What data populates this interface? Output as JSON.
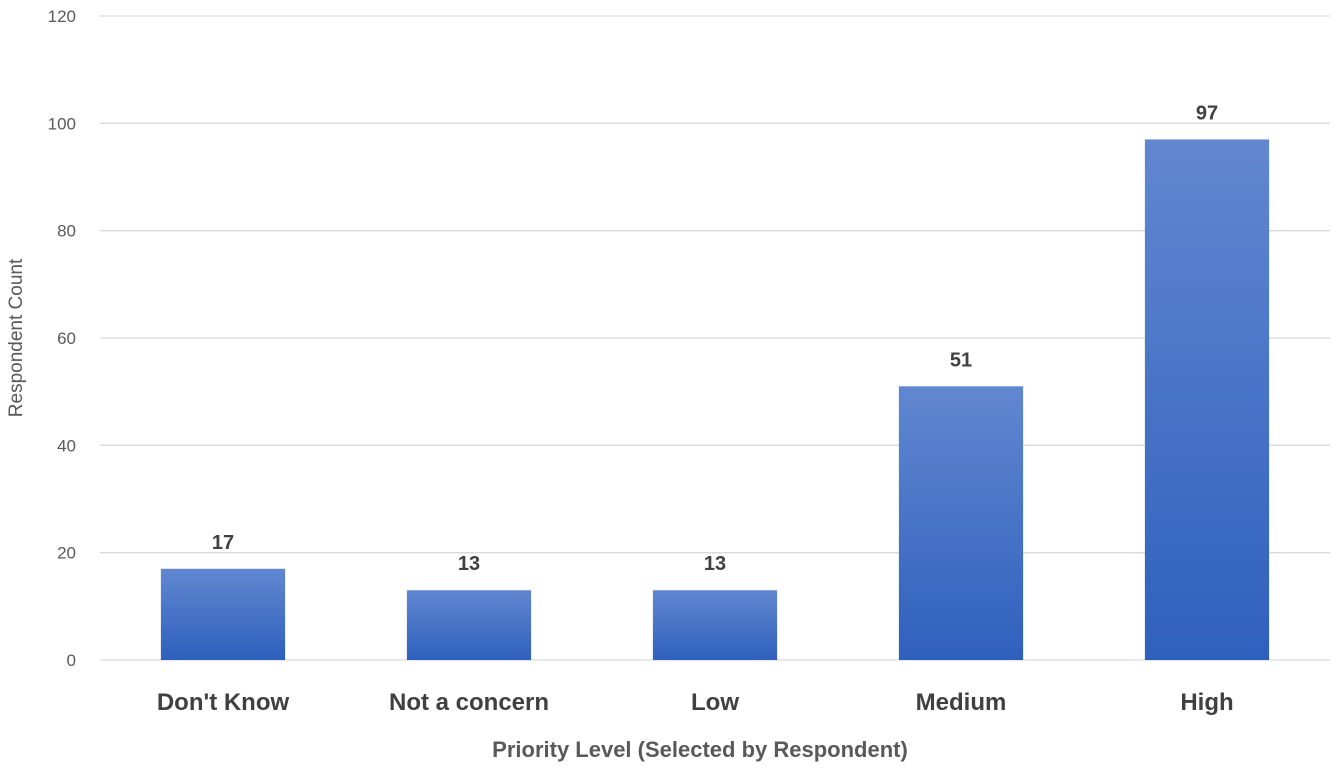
{
  "chart_data": {
    "type": "bar",
    "title": "",
    "xlabel": "Priority Level  (Selected by Respondent)",
    "ylabel": "Respondent Count",
    "categories": [
      "Don't Know",
      "Not a concern",
      "Low",
      "Medium",
      "High"
    ],
    "values": [
      17,
      13,
      13,
      51,
      97
    ],
    "data_labels": [
      "17",
      "13",
      "13",
      "51",
      "97"
    ],
    "ylim": [
      0,
      120
    ],
    "yticks": [
      0,
      20,
      40,
      60,
      80,
      100,
      120
    ],
    "ytick_labels": [
      "0",
      "20",
      "40",
      "60",
      "80",
      "100",
      "120"
    ],
    "grid": true,
    "legend": "none",
    "colors": {
      "bar_top": "#6187d0",
      "bar_bottom": "#2f60bd",
      "grid": "#d9d9d9"
    }
  }
}
